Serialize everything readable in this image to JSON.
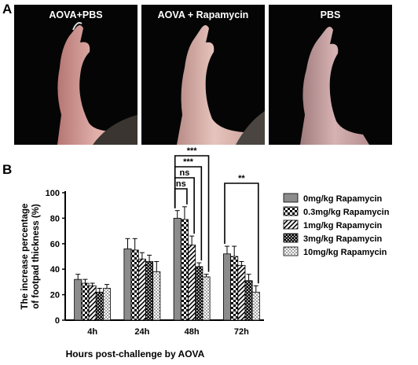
{
  "panels": {
    "a_letter": "A",
    "b_letter": "B"
  },
  "photos": [
    {
      "label": "AOVA+PBS",
      "redness": "#c98a86"
    },
    {
      "label": "AOVA + Rapamycin",
      "redness": "#cfa19c"
    },
    {
      "label": "PBS",
      "redness": "#c79b9b"
    }
  ],
  "chart_data": {
    "type": "bar",
    "title": "",
    "xlabel": "Hours post-challenge by AOVA",
    "ylabel": "The increase percentage of footpad thickness (%)",
    "ylabel_lines": [
      "The increase percentage",
      "of footpad thickness (%)"
    ],
    "ylim": [
      0,
      100
    ],
    "yticks": [
      0,
      20,
      40,
      60,
      80,
      100
    ],
    "categories": [
      "4h",
      "24h",
      "48h",
      "72h"
    ],
    "series": [
      {
        "name": "0mg/kg Rapamycin",
        "pattern": "gray",
        "values": [
          32,
          56,
          80,
          52
        ],
        "errors": [
          4,
          8,
          6,
          6
        ]
      },
      {
        "name": "0.3mg/kg Rapamycin",
        "pattern": "checker",
        "values": [
          29,
          55,
          79,
          50
        ],
        "errors": [
          3,
          9,
          10,
          8
        ]
      },
      {
        "name": "1mg/kg Rapamycin",
        "pattern": "hatch",
        "values": [
          27,
          48,
          59,
          43
        ],
        "errors": [
          2,
          5,
          7,
          3
        ]
      },
      {
        "name": "3mg/kg Rapamycin",
        "pattern": "dense",
        "values": [
          22,
          46,
          42,
          31
        ],
        "errors": [
          3,
          5,
          3,
          5
        ]
      },
      {
        "name": "10mg/kg Rapamycin",
        "pattern": "dots",
        "values": [
          25,
          38,
          34,
          22
        ],
        "errors": [
          3,
          8,
          2,
          5
        ]
      }
    ],
    "annotations": [
      {
        "label": "***",
        "category": "48h",
        "from_series": 0,
        "to_series": 4,
        "level": 3
      },
      {
        "label": "***",
        "category": "48h",
        "from_series": 0,
        "to_series": 3,
        "level": 2
      },
      {
        "label": "ns",
        "category": "48h",
        "from_series": 0,
        "to_series": 2,
        "level": 1
      },
      {
        "label": "ns",
        "category": "48h",
        "from_series": 0,
        "to_series": 1,
        "level": 0
      },
      {
        "label": "**",
        "category": "72h",
        "from_series": 0,
        "to_series": 4,
        "level": 0
      }
    ]
  }
}
